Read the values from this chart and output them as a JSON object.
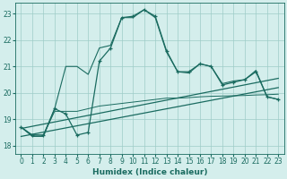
{
  "xlabel": "Humidex (Indice chaleur)",
  "xlim": [
    -0.5,
    23.5
  ],
  "ylim": [
    17.7,
    23.4
  ],
  "xticks": [
    0,
    1,
    2,
    3,
    4,
    5,
    6,
    7,
    8,
    9,
    10,
    11,
    12,
    13,
    14,
    15,
    16,
    17,
    18,
    19,
    20,
    21,
    22,
    23
  ],
  "yticks": [
    18,
    19,
    20,
    21,
    22,
    23
  ],
  "bg_color": "#d4eeec",
  "grid_color": "#9eccc8",
  "line_color": "#1a6b60",
  "line_color2": "#1a6b60",
  "main_y": [
    18.7,
    18.4,
    18.4,
    19.4,
    19.2,
    18.4,
    18.5,
    21.2,
    21.7,
    22.85,
    22.9,
    23.15,
    22.9,
    21.6,
    20.8,
    20.8,
    21.1,
    21.0,
    20.3,
    20.4,
    20.5,
    20.8,
    19.85,
    19.75
  ],
  "smooth_y": [
    18.7,
    18.35,
    18.35,
    19.4,
    21.0,
    21.0,
    20.7,
    21.7,
    21.8,
    22.85,
    22.85,
    23.15,
    22.85,
    21.55,
    20.8,
    20.75,
    21.1,
    21.0,
    20.35,
    20.45,
    20.5,
    20.85,
    19.85,
    19.75
  ],
  "trend_upper_x0": 0,
  "trend_upper_y0": 18.65,
  "trend_upper_x1": 23,
  "trend_upper_y1": 20.55,
  "trend_lower_x0": 0,
  "trend_lower_y0": 18.35,
  "trend_lower_x1": 23,
  "trend_lower_y1": 20.2,
  "flat_line_y": [
    18.7,
    18.4,
    18.4,
    19.3,
    19.3,
    19.3,
    19.4,
    19.5,
    19.55,
    19.6,
    19.65,
    19.7,
    19.75,
    19.8,
    19.8,
    19.82,
    19.85,
    19.87,
    19.88,
    19.89,
    19.9,
    19.92,
    19.93,
    19.95
  ]
}
